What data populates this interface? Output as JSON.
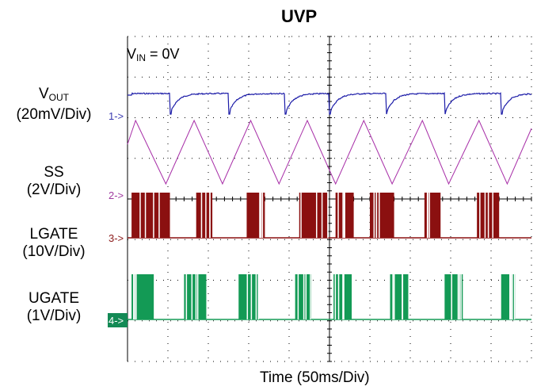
{
  "title": "UVP",
  "annotation": {
    "main": "V",
    "sub": "IN",
    "rest": " = 0V"
  },
  "xlabel": "Time  (50ms/Div)",
  "labels": {
    "vout": {
      "main": "V",
      "sub": "OUT",
      "scale": "(20mV/Div)"
    },
    "ss": {
      "name": "SS",
      "scale": "(2V/Div)"
    },
    "lgate": {
      "name": "LGATE",
      "scale": "(10V/Div)"
    },
    "ugate": {
      "name": "UGATE",
      "scale": "(1V/Div)"
    }
  },
  "markers": [
    {
      "id": "1",
      "text": "1->",
      "color": "#3a3ab0"
    },
    {
      "id": "2",
      "text": "2->",
      "color": "#a03aa0"
    },
    {
      "id": "3",
      "text": "3->",
      "color": "#8b1a1a"
    },
    {
      "id": "4",
      "text": "4->",
      "color": "#ffffff",
      "bg": "#138a55"
    }
  ],
  "chart_data": {
    "type": "line",
    "title": "UVP",
    "xlabel": "Time  (50ms/Div)",
    "x_divisions": 10,
    "y_divisions": 8,
    "series": [
      {
        "name": "VOUT",
        "color": "#1c1ca8",
        "shape": "periodic dips",
        "dip_times_div": [
          1.05,
          2.5,
          3.9,
          5.0,
          6.4,
          7.85,
          9.25
        ]
      },
      {
        "name": "SS",
        "color": "#a830a8",
        "shape": "triangle",
        "peaks_div": [
          0.2,
          1.65,
          3.05,
          4.45,
          5.85,
          7.3,
          8.7
        ],
        "valleys_div": [
          0.95,
          2.35,
          3.75,
          5.15,
          6.55,
          7.95,
          9.4
        ]
      },
      {
        "name": "LGATE",
        "color": "#8b1010",
        "shape": "switching bursts",
        "bursts_div": [
          [
            0.1,
            1.05
          ],
          [
            1.7,
            2.1
          ],
          [
            2.95,
            3.4
          ],
          [
            4.25,
            4.95
          ],
          [
            5.15,
            5.6
          ],
          [
            6.0,
            6.6
          ],
          [
            7.35,
            7.75
          ],
          [
            8.65,
            9.2
          ]
        ]
      },
      {
        "name": "UGATE",
        "color": "#139a55",
        "shape": "switching bursts",
        "bursts_div": [
          [
            0.1,
            0.65
          ],
          [
            1.4,
            1.95
          ],
          [
            2.75,
            3.25
          ],
          [
            4.15,
            4.55
          ],
          [
            5.1,
            5.55
          ],
          [
            6.5,
            6.95
          ],
          [
            7.85,
            8.3
          ],
          [
            9.25,
            9.6
          ]
        ]
      }
    ]
  }
}
